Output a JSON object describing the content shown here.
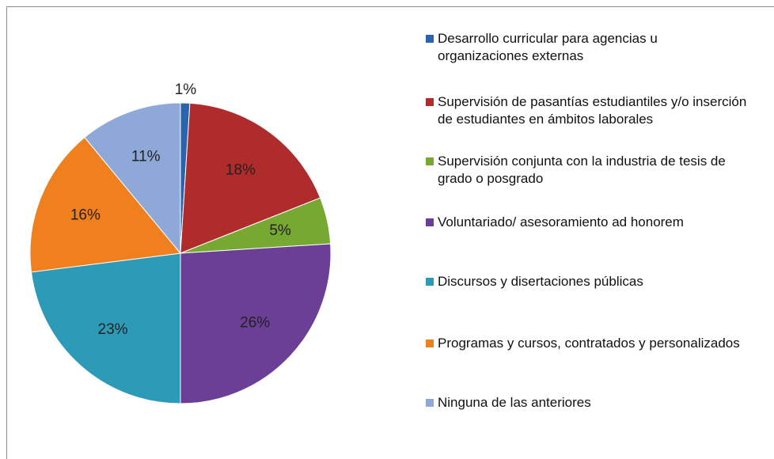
{
  "chart_data": {
    "type": "pie",
    "categories": [
      "Desarrollo curricular para agencias u organizaciones externas",
      "Supervisión de pasantías estudiantiles y/o inserción de estudiantes en ámbitos laborales",
      "Supervisión conjunta con la industria de tesis de grado o posgrado",
      "Voluntariado/ asesoramiento ad honorem",
      "Discursos y disertaciones públicas",
      "Programas y cursos, contratados y personalizados",
      "Ninguna de las anteriores"
    ],
    "values": [
      1,
      18,
      5,
      26,
      23,
      16,
      11
    ],
    "value_labels": [
      "1%",
      "18%",
      "5%",
      "26%",
      "23%",
      "16%",
      "11%"
    ],
    "colors": [
      "#2a64ae",
      "#b02b2b",
      "#77a832",
      "#6a3f95",
      "#2d9ab7",
      "#f07f1e",
      "#8ea9d8"
    ],
    "legend": "right"
  }
}
